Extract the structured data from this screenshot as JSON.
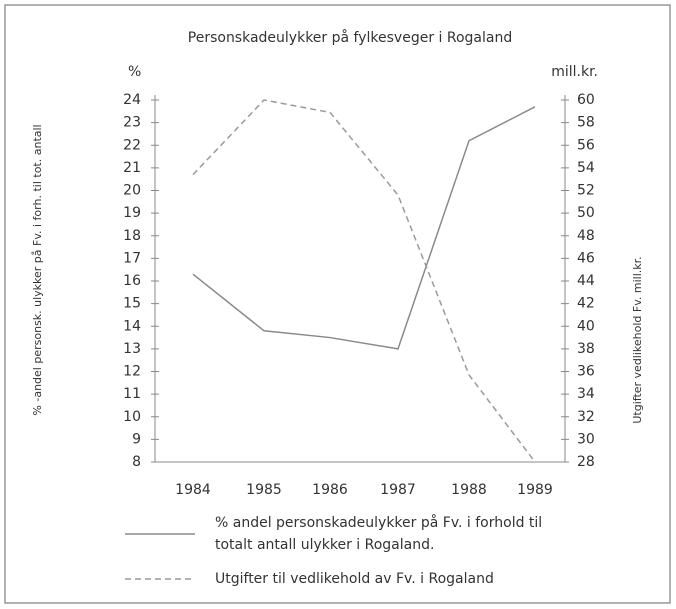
{
  "chart_data": {
    "type": "line",
    "title": "Personskadeulykker på fylkesveger i Rogaland",
    "y_unit_label": "%",
    "y2_unit_label": "mill.kr.",
    "ylabel": "% -andel personsk. ulykker på Fv. i forh. til tot. antall",
    "y2label": "Utgifter vedlikehold Fv. mill.kr.",
    "categories": [
      "1984",
      "1985",
      "1986",
      "1987",
      "1988",
      "1989"
    ],
    "series": [
      {
        "name": "% andel personskadeulykker på Fv. i forhold til totalt antall ulykker i Rogaland.",
        "color": "#8a8a8a",
        "dash": false,
        "values": [
          16.3,
          13.8,
          13.5,
          13.0,
          22.2,
          23.7
        ]
      },
      {
        "name": "Utgifter til vedlikehold av Fv. i Rogaland",
        "color": "#9a9a9a",
        "dash": true,
        "axis": "y2",
        "values": [
          53.4,
          60,
          58.9,
          51.6,
          35.7,
          28
        ]
      }
    ],
    "ylim": [
      8,
      24
    ],
    "yticks": [
      8,
      9,
      10,
      11,
      12,
      13,
      14,
      15,
      16,
      17,
      18,
      19,
      20,
      21,
      22,
      23,
      24
    ],
    "y2lim": [
      28,
      60
    ],
    "y2ticks": [
      28,
      30,
      32,
      34,
      36,
      38,
      40,
      42,
      44,
      46,
      48,
      50,
      52,
      54,
      56,
      58,
      60
    ]
  }
}
